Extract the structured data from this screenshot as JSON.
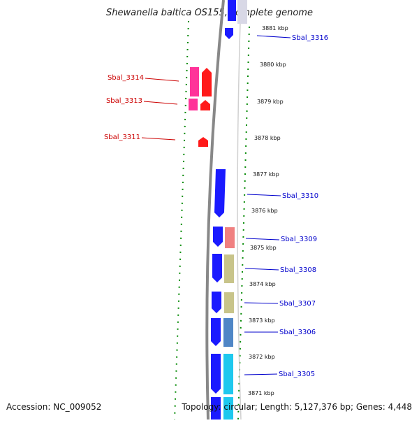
{
  "title": "Shewanella baltica OS155, complete genome",
  "footer": {
    "accession": "Accession: NC_009052",
    "topology": "Topology: circular; Length: 5,127,376 bp; Genes: 4,448"
  },
  "colors": {
    "forward_label": "#0000cc",
    "reverse_label": "#cc0000",
    "dotted_ring": "#008800",
    "backbone": "#888888",
    "blue": "#1a1aff",
    "red": "#ff1a1a",
    "pink": "#ff3399",
    "salmon": "#f08080",
    "khaki": "#c8c48a",
    "steel": "#4f86c6",
    "cyan": "#1ec8ee"
  },
  "kbp_ticks": [
    "3881 kbp",
    "3880 kbp",
    "3879 kbp",
    "3878 kbp",
    "3877 kbp",
    "3876 kbp",
    "3875 kbp",
    "3874 kbp",
    "3873 kbp",
    "3872 kbp",
    "3871 kbp"
  ],
  "genes_forward": [
    "Sbal_3316",
    "Sbal_3310",
    "Sbal_3309",
    "Sbal_3308",
    "Sbal_3307",
    "Sbal_3306",
    "Sbal_3305"
  ],
  "genes_reverse": [
    "Sbal_3314",
    "Sbal_3313",
    "Sbal_3311"
  ]
}
